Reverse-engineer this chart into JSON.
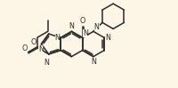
{
  "bg_color": "#fdf5e6",
  "line_color": "#2a2a2a",
  "lw": 1.1,
  "fs": 5.8,
  "figsize": [
    2.0,
    0.99
  ],
  "dpi": 100,
  "xlim": [
    -1.0,
    9.5
  ],
  "ylim": [
    -2.5,
    4.5
  ]
}
